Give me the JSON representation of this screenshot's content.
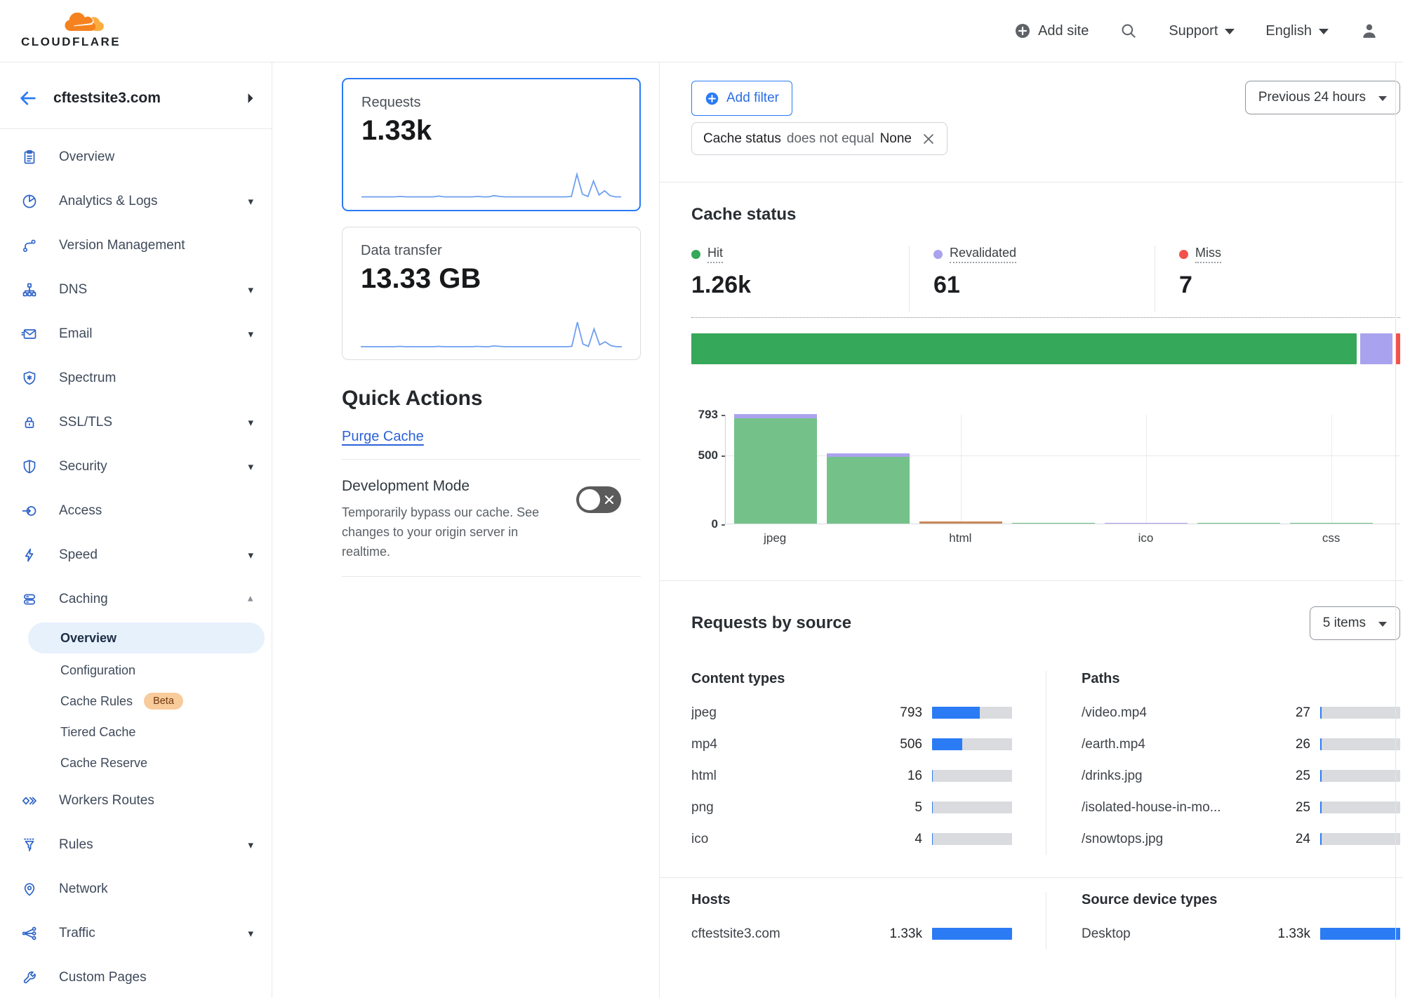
{
  "navbar": {
    "brand": "CLOUDFLARE",
    "add_site": "Add site",
    "support": "Support",
    "language": "English"
  },
  "sidebar": {
    "site": "cftestsite3.com",
    "items": [
      {
        "label": "Overview",
        "icon": "overview",
        "chevron": false
      },
      {
        "label": "Analytics & Logs",
        "icon": "analytics",
        "chevron": true
      },
      {
        "label": "Version Management",
        "icon": "version",
        "chevron": false
      },
      {
        "label": "DNS",
        "icon": "dns",
        "chevron": true
      },
      {
        "label": "Email",
        "icon": "email",
        "chevron": true
      },
      {
        "label": "Spectrum",
        "icon": "spectrum",
        "chevron": false
      },
      {
        "label": "SSL/TLS",
        "icon": "ssl",
        "chevron": true
      },
      {
        "label": "Security",
        "icon": "security",
        "chevron": true
      },
      {
        "label": "Access",
        "icon": "access",
        "chevron": false
      },
      {
        "label": "Speed",
        "icon": "speed",
        "chevron": true
      },
      {
        "label": "Caching",
        "icon": "caching",
        "chevron": true,
        "expanded": true,
        "subitems": [
          {
            "label": "Overview",
            "active": true
          },
          {
            "label": "Configuration"
          },
          {
            "label": "Cache Rules",
            "badge": "Beta"
          },
          {
            "label": "Tiered Cache"
          },
          {
            "label": "Cache Reserve"
          }
        ]
      },
      {
        "label": "Workers Routes",
        "icon": "workers",
        "chevron": false
      },
      {
        "label": "Rules",
        "icon": "rules",
        "chevron": true
      },
      {
        "label": "Network",
        "icon": "network",
        "chevron": false
      },
      {
        "label": "Traffic",
        "icon": "traffic",
        "chevron": true
      },
      {
        "label": "Custom Pages",
        "icon": "wrench",
        "chevron": false
      }
    ]
  },
  "metric_cards": [
    {
      "label": "Requests",
      "value": "1.33k",
      "active": true
    },
    {
      "label": "Data transfer",
      "value": "13.33 GB",
      "active": false
    }
  ],
  "quick_actions": {
    "title": "Quick Actions",
    "purge_cache": "Purge Cache",
    "development_mode": {
      "title": "Development Mode",
      "description": "Temporarily bypass our cache. See changes to your origin server in realtime.",
      "enabled": false
    }
  },
  "filters": {
    "add_filter": "Add filter",
    "chip": {
      "field": "Cache status",
      "operator": "does not equal",
      "value": "None"
    },
    "time_range": "Previous 24 hours"
  },
  "cache_status": {
    "title": "Cache status",
    "stats": [
      {
        "label": "Hit",
        "value": "1.26k",
        "color": "#35a85a"
      },
      {
        "label": "Revalidated",
        "value": "61",
        "color": "#a9a2ee"
      },
      {
        "label": "Miss",
        "value": "7",
        "color": "#f1524b"
      }
    ]
  },
  "requests_by_source": {
    "title": "Requests by source",
    "items_dropdown": "5 items"
  },
  "chart_data": [
    {
      "id": "requests_sparkline",
      "type": "line",
      "color": "#6f9ff0",
      "values": [
        2,
        2,
        2,
        2,
        2,
        2,
        2,
        3,
        2,
        2,
        2,
        2,
        2,
        2,
        4,
        2,
        2,
        2,
        2,
        2,
        2,
        3,
        2,
        2,
        5,
        3,
        2,
        2,
        2,
        2,
        2,
        2,
        2,
        2,
        2,
        2,
        2,
        2,
        3,
        62,
        9,
        3,
        44,
        7,
        18,
        5,
        2,
        2
      ]
    },
    {
      "id": "transfer_sparkline",
      "type": "line",
      "color": "#6f9ff0",
      "values": [
        1,
        1,
        1,
        1,
        1,
        1,
        1,
        2,
        1,
        1,
        1,
        1,
        1,
        1,
        2,
        1,
        1,
        1,
        1,
        1,
        1,
        2,
        1,
        1,
        3,
        2,
        1,
        1,
        1,
        1,
        1,
        1,
        1,
        1,
        1,
        1,
        1,
        1,
        2,
        66,
        8,
        2,
        48,
        6,
        14,
        4,
        1,
        1
      ]
    },
    {
      "id": "cache_status_distribution",
      "type": "stacked-bar",
      "segments": [
        {
          "label": "Hit",
          "value": 1260,
          "color": "#35a85a"
        },
        {
          "label": "Revalidated",
          "value": 61,
          "color": "#a9a2ee"
        },
        {
          "label": "Miss",
          "value": 7,
          "color": "#f1524b"
        }
      ]
    },
    {
      "id": "cache_status_by_content_type",
      "type": "bar",
      "ymax": 793,
      "yticks": [
        0,
        500,
        793
      ],
      "bars": [
        {
          "label": "jpeg",
          "show_label": true,
          "segments": [
            {
              "status": "hit",
              "value": 762,
              "color": "#74c289"
            },
            {
              "status": "revalidated",
              "value": 31,
              "color": "#aba3ef"
            }
          ]
        },
        {
          "label": "mp4",
          "show_label": false,
          "segments": [
            {
              "status": "hit",
              "value": 481,
              "color": "#74c289"
            },
            {
              "status": "revalidated",
              "value": 25,
              "color": "#aba3ef"
            }
          ]
        },
        {
          "label": "html",
          "show_label": true,
          "segments": [
            {
              "status": "other",
              "value": 16,
              "color": "#c9895b"
            }
          ]
        },
        {
          "label": "png",
          "show_label": false,
          "segments": [
            {
              "status": "hit",
              "value": 5,
              "color": "#74c289"
            }
          ]
        },
        {
          "label": "ico",
          "show_label": true,
          "segments": [
            {
              "status": "revalidated",
              "value": 4,
              "color": "#aba3ef"
            }
          ]
        },
        {
          "label": "",
          "show_label": false,
          "segments": [
            {
              "status": "hit",
              "value": 2,
              "color": "#74c289"
            }
          ]
        },
        {
          "label": "css",
          "show_label": true,
          "segments": [
            {
              "status": "hit",
              "value": 1,
              "color": "#74c289"
            }
          ]
        }
      ]
    },
    {
      "id": "content_types",
      "type": "table",
      "title": "Content types",
      "total": 1328,
      "rows": [
        {
          "label": "jpeg",
          "value": 793,
          "display": "793"
        },
        {
          "label": "mp4",
          "value": 506,
          "display": "506"
        },
        {
          "label": "html",
          "value": 16,
          "display": "16"
        },
        {
          "label": "png",
          "value": 5,
          "display": "5"
        },
        {
          "label": "ico",
          "value": 4,
          "display": "4"
        }
      ]
    },
    {
      "id": "paths",
      "type": "table",
      "title": "Paths",
      "total": 1328,
      "rows": [
        {
          "label": "/video.mp4",
          "value": 27,
          "display": "27"
        },
        {
          "label": "/earth.mp4",
          "value": 26,
          "display": "26"
        },
        {
          "label": "/drinks.jpg",
          "value": 25,
          "display": "25"
        },
        {
          "label": "/isolated-house-in-mo...",
          "value": 25,
          "display": "25"
        },
        {
          "label": "/snowtops.jpg",
          "value": 24,
          "display": "24"
        }
      ]
    },
    {
      "id": "hosts",
      "type": "table",
      "title": "Hosts",
      "total": 1330,
      "rows": [
        {
          "label": "cftestsite3.com",
          "value": 1330,
          "display": "1.33k"
        }
      ]
    },
    {
      "id": "source_device_types",
      "type": "table",
      "title": "Source device types",
      "total": 1330,
      "rows": [
        {
          "label": "Desktop",
          "value": 1330,
          "display": "1.33k"
        }
      ]
    }
  ],
  "colors": {
    "accent_blue": "#2b7bf5",
    "hit_green": "#35a85a",
    "revalidated_purple": "#a9a2ee",
    "miss_red": "#f1524b",
    "sidebar_icon_blue": "#2d63c8"
  }
}
